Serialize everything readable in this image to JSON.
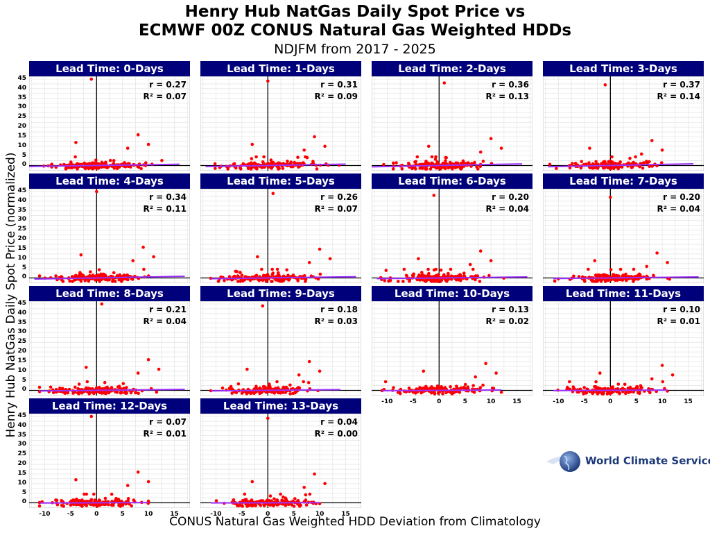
{
  "title_line1": "Henry Hub NatGas Daily Spot Price vs",
  "title_line2": "ECMWF 00Z CONUS Natural Gas Weighted HDDs",
  "subtitle": "NDJFM from 2017 - 2025",
  "y_axis_label": "Henry Hub NatGas Daily Spot Price (normalized)",
  "x_axis_label": "CONUS Natural Gas Weighted HDD Deviation from Climatology",
  "logo_text": "World Climate Service",
  "colors": {
    "header_bg": "#00007a",
    "points": "#ff0000",
    "trend": "#9b30ff",
    "text": "#000000"
  },
  "chart_data": {
    "type": "scatter",
    "xlim": [
      -13,
      18
    ],
    "ylim": [
      -2,
      45
    ],
    "x_ticks": [
      -10,
      -5,
      0,
      5,
      10,
      15
    ],
    "y_ticks": [
      0,
      5,
      10,
      15,
      20,
      25,
      30,
      35,
      40,
      45
    ],
    "grid": true,
    "panels": [
      {
        "label": "Lead Time: 0-Days",
        "r": "r = 0.27",
        "r2": "R² = 0.07",
        "r_val": 0.27,
        "xrange": [
          -13,
          16
        ]
      },
      {
        "label": "Lead Time: 1-Days",
        "r": "r = 0.31",
        "r2": "R² = 0.09",
        "r_val": 0.31,
        "xrange": [
          -12,
          15
        ]
      },
      {
        "label": "Lead Time: 2-Days",
        "r": "r = 0.36",
        "r2": "R² = 0.13",
        "r_val": 0.36,
        "xrange": [
          -13,
          16
        ]
      },
      {
        "label": "Lead Time: 3-Days",
        "r": "r = 0.37",
        "r2": "R² = 0.14",
        "r_val": 0.37,
        "xrange": [
          -12,
          16
        ]
      },
      {
        "label": "Lead Time: 4-Days",
        "r": "r = 0.34",
        "r2": "R² = 0.11",
        "r_val": 0.34,
        "xrange": [
          -12,
          17
        ]
      },
      {
        "label": "Lead Time: 5-Days",
        "r": "r = 0.26",
        "r2": "R² = 0.07",
        "r_val": 0.26,
        "xrange": [
          -11,
          17
        ]
      },
      {
        "label": "Lead Time: 6-Days",
        "r": "r = 0.20",
        "r2": "R² = 0.04",
        "r_val": 0.2,
        "xrange": [
          -12,
          17
        ]
      },
      {
        "label": "Lead Time: 7-Days",
        "r": "r = 0.20",
        "r2": "R² = 0.04",
        "r_val": 0.2,
        "xrange": [
          -11,
          17
        ]
      },
      {
        "label": "Lead Time: 8-Days",
        "r": "r = 0.21",
        "r2": "R² = 0.04",
        "r_val": 0.21,
        "xrange": [
          -11,
          17
        ]
      },
      {
        "label": "Lead Time: 9-Days",
        "r": "r = 0.18",
        "r2": "R² = 0.03",
        "r_val": 0.18,
        "xrange": [
          -11,
          14
        ]
      },
      {
        "label": "Lead Time: 10-Days",
        "r": "r = 0.13",
        "r2": "R² = 0.02",
        "r_val": 0.13,
        "xrange": [
          -11,
          12
        ]
      },
      {
        "label": "Lead Time: 11-Days",
        "r": "r = 0.10",
        "r2": "R² = 0.01",
        "r_val": 0.1,
        "xrange": [
          -11,
          11
        ]
      },
      {
        "label": "Lead Time: 12-Days",
        "r": "r = 0.07",
        "r2": "R² = 0.01",
        "r_val": 0.07,
        "xrange": [
          -11,
          10
        ]
      },
      {
        "label": "Lead Time: 13-Days",
        "r": "r = 0.04",
        "r2": "R² = 0.00",
        "r_val": 0.04,
        "xrange": [
          -11,
          10
        ]
      }
    ]
  }
}
